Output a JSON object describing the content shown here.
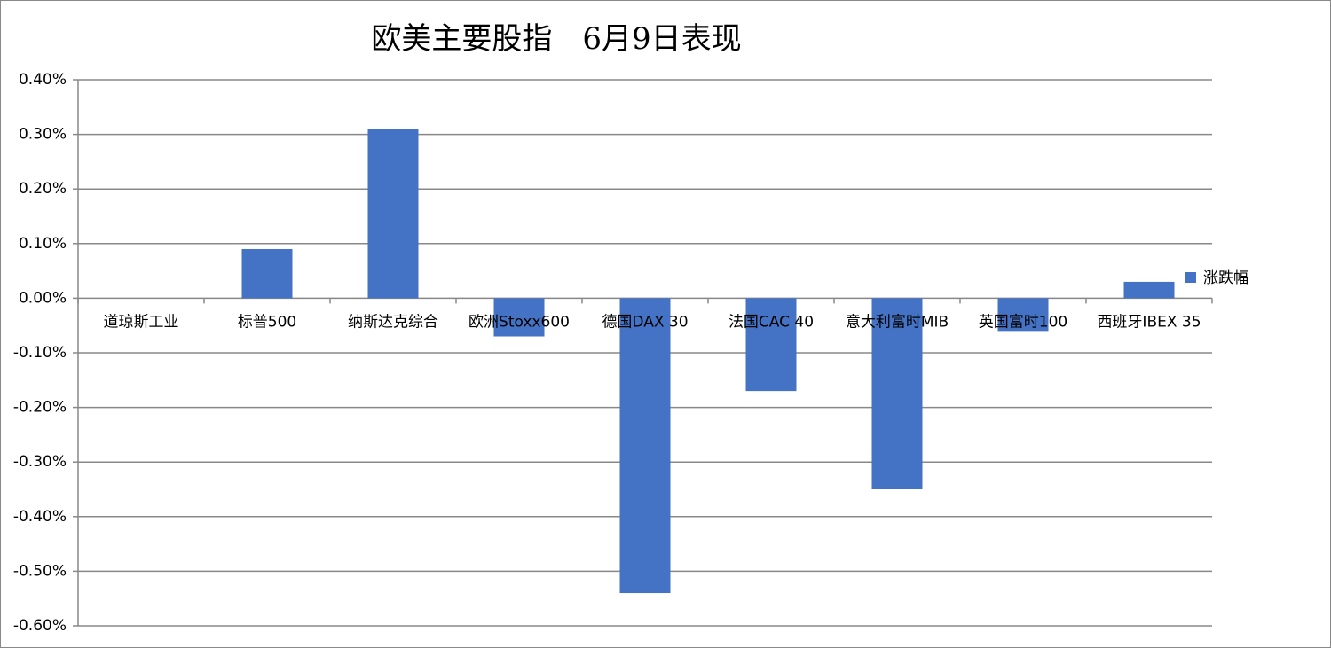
{
  "chart_data": {
    "type": "bar",
    "title": "欧美主要股指　6月9日表现",
    "categories": [
      "道琼斯工业",
      "标普500",
      "纳斯达克综合",
      "欧洲Stoxx600",
      "德国DAX 30",
      "法国CAC 40",
      "意大利富时MIB",
      "英国富时100",
      "西班牙IBEX 35"
    ],
    "series": [
      {
        "name": "涨跌幅",
        "color": "#4472c4",
        "values": [
          0,
          0.09,
          0.31,
          -0.07,
          -0.54,
          -0.17,
          -0.35,
          -0.06,
          0.03
        ]
      }
    ],
    "ylim": [
      -0.6,
      0.4
    ],
    "yticks": [
      {
        "value": -0.6,
        "label": "-0.60%"
      },
      {
        "value": -0.5,
        "label": "-0.50%"
      },
      {
        "value": -0.4,
        "label": "-0.40%"
      },
      {
        "value": -0.3,
        "label": "-0.30%"
      },
      {
        "value": -0.2,
        "label": "-0.20%"
      },
      {
        "value": -0.1,
        "label": "-0.10%"
      },
      {
        "value": 0,
        "label": "0.00%"
      },
      {
        "value": 0.1,
        "label": "0.10%"
      },
      {
        "value": 0.2,
        "label": "0.20%"
      },
      {
        "value": 0.3,
        "label": "0.30%"
      },
      {
        "value": 0.4,
        "label": "0.40%"
      }
    ],
    "grid": true,
    "legend": "right"
  }
}
